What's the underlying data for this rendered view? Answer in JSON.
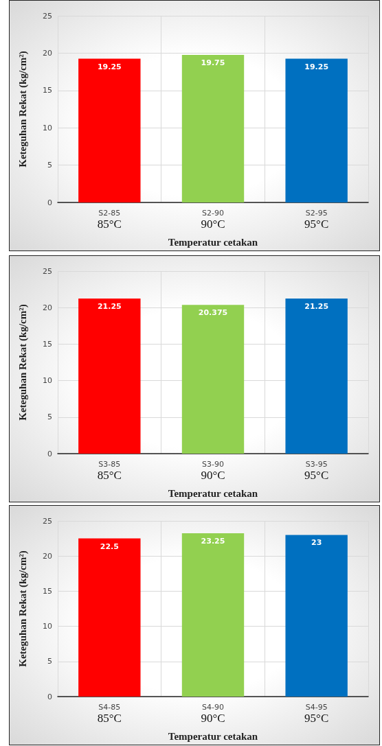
{
  "chart_data": [
    {
      "type": "bar",
      "categories": [
        "S2-85\n85°C",
        "S2-90\n90°C",
        "S2-95\n95°C"
      ],
      "values": [
        19.25,
        19.75,
        19.25
      ],
      "colors": [
        "#ff0000",
        "#92d050",
        "#0070c0"
      ],
      "xlabel": "Temperatur cetakan",
      "ylabel": "Keteguhan Rekat (kg/cm²)",
      "ylim": [
        0,
        25
      ],
      "yticks": [
        0,
        5,
        10,
        15,
        20,
        25
      ],
      "grid": true,
      "data_labels": true
    },
    {
      "type": "bar",
      "categories": [
        "S3-85\n85°C",
        "S3-90\n90°C",
        "S3-95\n95°C"
      ],
      "values": [
        21.25,
        20.375,
        21.25
      ],
      "colors": [
        "#ff0000",
        "#92d050",
        "#0070c0"
      ],
      "xlabel": "Temperatur cetakan",
      "ylabel": "Keteguhan Rekat (kg/cm²)",
      "ylim": [
        0,
        25
      ],
      "yticks": [
        0,
        5,
        10,
        15,
        20,
        25
      ],
      "grid": true,
      "data_labels": true
    },
    {
      "type": "bar",
      "categories": [
        "S4-85\n85°C",
        "S4-90\n90°C",
        "S4-95\n95°C"
      ],
      "values": [
        22.5,
        23.25,
        23
      ],
      "colors": [
        "#ff0000",
        "#92d050",
        "#0070c0"
      ],
      "xlabel": "Temperatur cetakan",
      "ylabel": "Keteguhan Rekat (kg/cm²)",
      "ylim": [
        0,
        25
      ],
      "yticks": [
        0,
        5,
        10,
        15,
        20,
        25
      ],
      "grid": true,
      "data_labels": true
    }
  ]
}
